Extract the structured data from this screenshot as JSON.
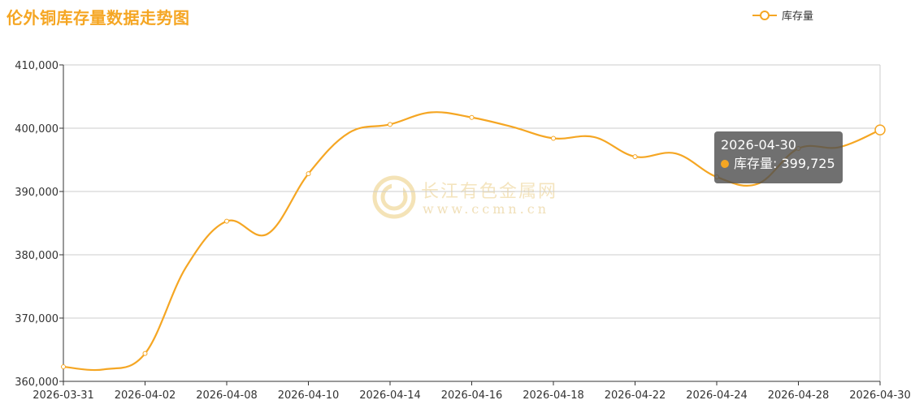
{
  "header": {
    "title": "伦外铜库存量数据走势图"
  },
  "legend": {
    "label": "库存量"
  },
  "watermark": {
    "cn": "长江有色金属网",
    "en": "www.ccmn.cn"
  },
  "tooltip": {
    "date": "2026-04-30",
    "series": "库存量",
    "value": "399,725"
  },
  "colors": {
    "line": "#f5a623",
    "axis": "#333333",
    "grid": "#cccccc"
  },
  "chart_data": {
    "type": "line",
    "title": "伦外铜库存量数据走势图",
    "xlabel": "",
    "ylabel": "",
    "categories": [
      "2026-03-31",
      "2026-04-02",
      "2026-04-08",
      "2026-04-10",
      "2026-04-14",
      "2026-04-16",
      "2026-04-18",
      "2026-04-22",
      "2026-04-24",
      "2026-04-28",
      "2026-04-30"
    ],
    "x": [
      "2026-03-31",
      "2026-04-01",
      "2026-04-02",
      "2026-04-07",
      "2026-04-08",
      "2026-04-09",
      "2026-04-10",
      "2026-04-13",
      "2026-04-14",
      "2026-04-15",
      "2026-04-16",
      "2026-04-17",
      "2026-04-18",
      "2026-04-21",
      "2026-04-22",
      "2026-04-23",
      "2026-04-24",
      "2026-04-27",
      "2026-04-28",
      "2026-04-29",
      "2026-04-30"
    ],
    "series": [
      {
        "name": "库存量",
        "values": [
          362300,
          361900,
          364400,
          378000,
          385300,
          383300,
          392800,
          399300,
          400600,
          402500,
          401700,
          400200,
          398400,
          398600,
          395500,
          396000,
          392300,
          391200,
          396800,
          397000,
          399725
        ]
      }
    ],
    "ylim": [
      360000,
      410000
    ],
    "yticks": [
      "360,000",
      "370,000",
      "380,000",
      "390,000",
      "400,000",
      "410,000"
    ],
    "grid": true,
    "legend_position": "top-right",
    "smooth": true
  }
}
